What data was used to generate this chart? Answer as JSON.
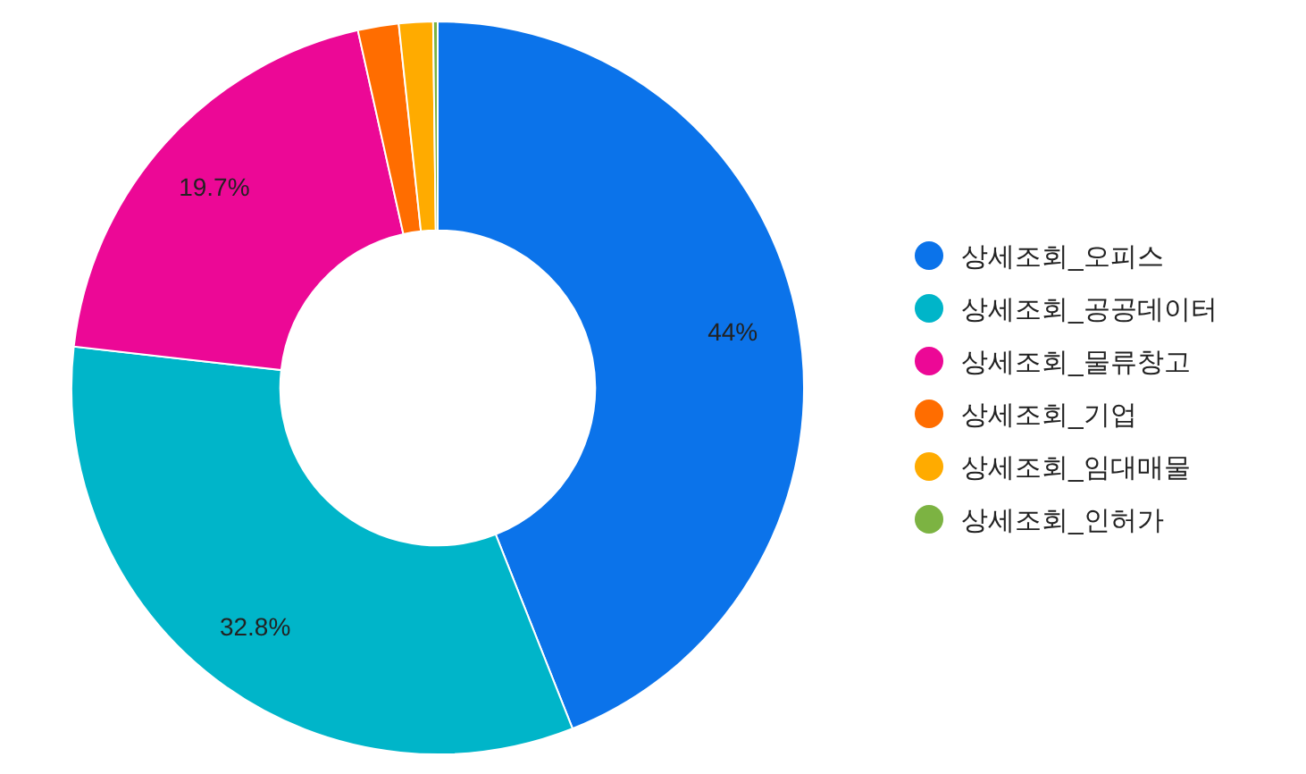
{
  "chart_data": {
    "type": "donut",
    "categories": [
      "상세조회_오피스",
      "상세조회_공공데이터",
      "상세조회_물류창고",
      "상세조회_기업",
      "상세조회_임대매물",
      "상세조회_인허가"
    ],
    "values": [
      44,
      32.8,
      19.7,
      1.8,
      1.5,
      0.2
    ],
    "colors": [
      "#0b73ea",
      "#00b5c9",
      "#ec0896",
      "#ff6d00",
      "#ffab00",
      "#7cb342"
    ],
    "value_labels": [
      "44%",
      "32.8%",
      "19.7%",
      null,
      null,
      null
    ],
    "legend": "right"
  }
}
